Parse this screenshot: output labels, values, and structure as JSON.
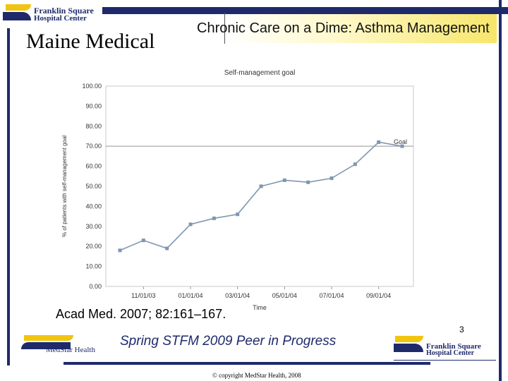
{
  "header": {
    "institution": "Maine Medical",
    "slide_title": "Chronic Care on a Dime: Asthma Management"
  },
  "logos": {
    "top_line1": "Franklin Square",
    "top_line2": "Hospital Center",
    "bottom_line1": "Franklin Square",
    "bottom_line2": "Hospital Center",
    "medstar": "MedStar Health"
  },
  "footer": {
    "citation": "Acad Med. 2007; 82:161–167.",
    "conference": "Spring STFM 2009 Peer in Progress",
    "slide_number": "3",
    "copyright": "© copyright MedStar Health, 2008"
  },
  "colors": {
    "navy": "#1f2a6b",
    "gold": "#f1c40f",
    "series": "#8096b0",
    "goal_line": "#b8b8b8"
  },
  "chart_data": {
    "type": "line",
    "title": "Self-management goal",
    "xlabel": "Time",
    "ylabel": "% of patients with self-management goal",
    "ylim": [
      0,
      100
    ],
    "y_ticks": [
      "0.00",
      "10.00",
      "20.00",
      "30.00",
      "40.00",
      "50.00",
      "60.00",
      "70.00",
      "80.00",
      "90.00",
      "100.00"
    ],
    "x_tick_labels": [
      "11/01/03",
      "01/01/04",
      "03/01/04",
      "05/01/04",
      "07/01/04",
      "09/01/04"
    ],
    "x_tick_positions": [
      2,
      4,
      6,
      8,
      10,
      12
    ],
    "series": [
      {
        "values": [
          18,
          23,
          19,
          31,
          34,
          36,
          50,
          53,
          52,
          54,
          61,
          72,
          70
        ]
      }
    ],
    "goal": {
      "label": "Goal",
      "value": 70
    },
    "grid": false
  }
}
